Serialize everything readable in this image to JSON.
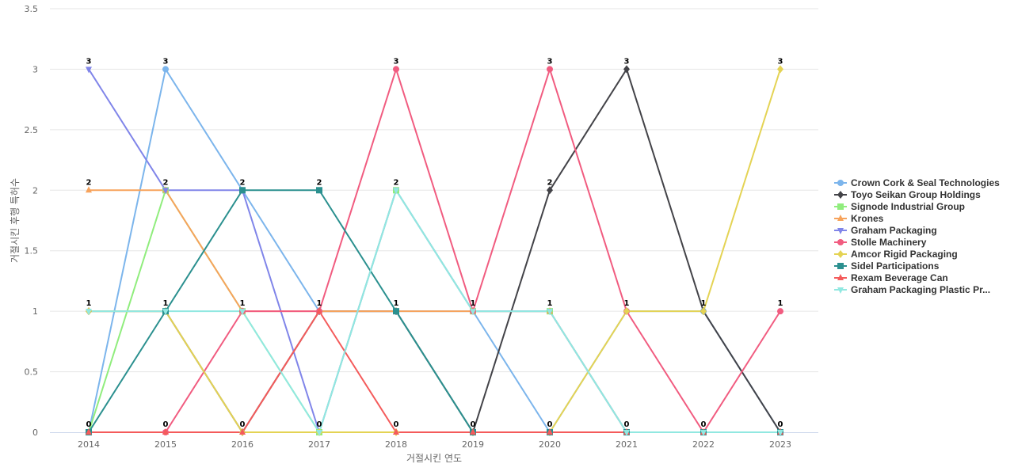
{
  "chart_data": {
    "type": "line",
    "title": "",
    "xlabel": "거절시킨 연도",
    "ylabel": "거절시킨 후행 특허수",
    "x": [
      "2014",
      "2015",
      "2016",
      "2017",
      "2018",
      "2019",
      "2020",
      "2021",
      "2022",
      "2023"
    ],
    "ylim": [
      0,
      3.5
    ],
    "yticks": [
      "0",
      "0.5",
      "1",
      "1.5",
      "2",
      "2.5",
      "3",
      "3.5"
    ],
    "grid": true,
    "legend_position": "right",
    "series": [
      {
        "name": "Crown Cork & Seal Technologies",
        "color": "#7cb5ec",
        "marker": "circle",
        "values": [
          0,
          3,
          2,
          1,
          1,
          1,
          0,
          1,
          1,
          0
        ]
      },
      {
        "name": "Toyo Seikan Group Holdings",
        "color": "#434348",
        "marker": "diamond",
        "values": [
          1,
          1,
          0,
          1,
          1,
          0,
          2,
          3,
          1,
          0
        ]
      },
      {
        "name": "Signode Industrial Group",
        "color": "#90ed7d",
        "marker": "square",
        "values": [
          0,
          2,
          1,
          0,
          2,
          1,
          1,
          0,
          0,
          0
        ]
      },
      {
        "name": "Krones",
        "color": "#f7a35c",
        "marker": "triangle",
        "values": [
          2,
          2,
          1,
          1,
          1,
          1,
          1,
          0,
          0,
          0
        ]
      },
      {
        "name": "Graham Packaging",
        "color": "#8085e9",
        "marker": "triangle-down",
        "values": [
          3,
          2,
          2,
          0,
          2,
          1,
          1,
          0,
          0,
          0
        ]
      },
      {
        "name": "Stolle Machinery",
        "color": "#f15c80",
        "marker": "circle",
        "values": [
          0,
          0,
          1,
          1,
          3,
          1,
          3,
          1,
          0,
          1
        ]
      },
      {
        "name": "Amcor Rigid Packaging",
        "color": "#e4d354",
        "marker": "diamond",
        "values": [
          1,
          1,
          0,
          0,
          0,
          0,
          0,
          1,
          1,
          3
        ]
      },
      {
        "name": "Sidel Participations",
        "color": "#2b908f",
        "marker": "square",
        "values": [
          0,
          1,
          2,
          2,
          1,
          0,
          0,
          0,
          0,
          0
        ]
      },
      {
        "name": "Rexam Beverage Can",
        "color": "#f45b5b",
        "marker": "triangle",
        "values": [
          0,
          0,
          0,
          1,
          0,
          0,
          0,
          0,
          0,
          0
        ]
      },
      {
        "name": "Graham Packaging Plastic Pr...",
        "color": "#91e8e1",
        "marker": "triangle-down",
        "values": [
          1,
          1,
          1,
          0,
          2,
          1,
          1,
          0,
          0,
          0
        ]
      }
    ],
    "point_labels": [
      {
        "x": "2014",
        "value": 3
      },
      {
        "x": "2014",
        "value": 2
      },
      {
        "x": "2014",
        "value": 1
      },
      {
        "x": "2014",
        "value": 0
      },
      {
        "x": "2015",
        "value": 3
      },
      {
        "x": "2015",
        "value": 2
      },
      {
        "x": "2015",
        "value": 1
      },
      {
        "x": "2015",
        "value": 0
      },
      {
        "x": "2016",
        "value": 2
      },
      {
        "x": "2016",
        "value": 1
      },
      {
        "x": "2016",
        "value": 0
      },
      {
        "x": "2017",
        "value": 2
      },
      {
        "x": "2017",
        "value": 1
      },
      {
        "x": "2017",
        "value": 0
      },
      {
        "x": "2018",
        "value": 3
      },
      {
        "x": "2018",
        "value": 2
      },
      {
        "x": "2018",
        "value": 1
      },
      {
        "x": "2018",
        "value": 0
      },
      {
        "x": "2019",
        "value": 1
      },
      {
        "x": "2019",
        "value": 0
      },
      {
        "x": "2020",
        "value": 3
      },
      {
        "x": "2020",
        "value": 2
      },
      {
        "x": "2020",
        "value": 1
      },
      {
        "x": "2020",
        "value": 0
      },
      {
        "x": "2021",
        "value": 3
      },
      {
        "x": "2021",
        "value": 1
      },
      {
        "x": "2021",
        "value": 0
      },
      {
        "x": "2022",
        "value": 1
      },
      {
        "x": "2022",
        "value": 0
      },
      {
        "x": "2023",
        "value": 3
      },
      {
        "x": "2023",
        "value": 1
      },
      {
        "x": "2023",
        "value": 0
      }
    ]
  }
}
